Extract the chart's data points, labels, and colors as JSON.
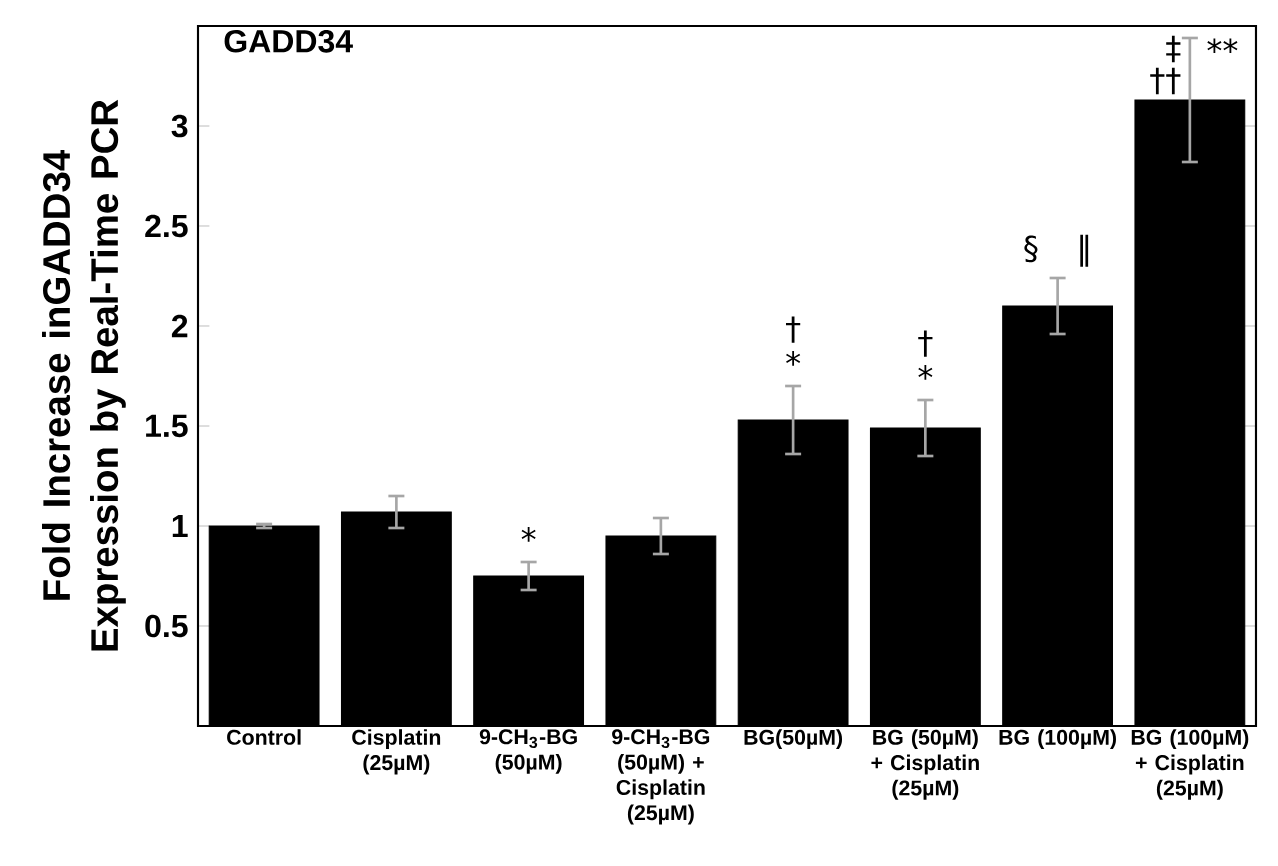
{
  "chart_data": {
    "type": "bar",
    "title": "GADD34",
    "ylabel": "Fold Increase inGADD34 Expression by Real-Time PCR",
    "categories": [
      "Control",
      "Cisplatin (25µM)",
      "9-CH$_{3}$-BG (50µM)",
      "9-CH$_{3}$-BG (50µM) + Cisplatin (25µM)",
      "BG(50µM)",
      "BG (50µM) + Cisplatin (25µM)",
      "BG (100µM)",
      "BG (100µM) + Cisplatin (25µM)"
    ],
    "values": [
      1.0,
      1.07,
      0.75,
      0.95,
      1.53,
      1.49,
      2.1,
      3.13
    ],
    "errors": [
      0.01,
      0.08,
      0.07,
      0.09,
      0.17,
      0.14,
      0.14,
      0.31
    ],
    "color": "#000000",
    "ylim": [
      0,
      3.5
    ],
    "yticks": [
      0.5,
      1,
      1.5,
      2,
      2.5,
      3
    ],
    "annotations": [
      {
        "text": "*",
        "x": "9-CH$_{3}$-BG (50µM)",
        "y": 0.75
      },
      {
        "text": "†",
        "x": "BG(50µM)",
        "y": 1.53
      },
      {
        "text": "*",
        "x": "BG(50µM)",
        "y": 1.53
      },
      {
        "text": "†",
        "x": "BG (50µM) + Cisplatin (25µM)",
        "y": 1.49
      },
      {
        "text": "*",
        "x": "BG (50µM) + Cisplatin (25µM)",
        "y": 1.49
      },
      {
        "text": "§ ‖",
        "x": "BG (100µM)",
        "y": 2.1
      },
      {
        "text": "‡",
        "x": "BG (100µM) + Cisplatin (25µM)",
        "y": 3.13
      },
      {
        "text": "††",
        "x": "BG (100µM) + Cisplatin (25µM)",
        "y": 3.13
      },
      {
        "text": "**",
        "x": "BG (100µM) + Cisplatin (25µM)",
        "y": 3.13
      }
    ]
  }
}
